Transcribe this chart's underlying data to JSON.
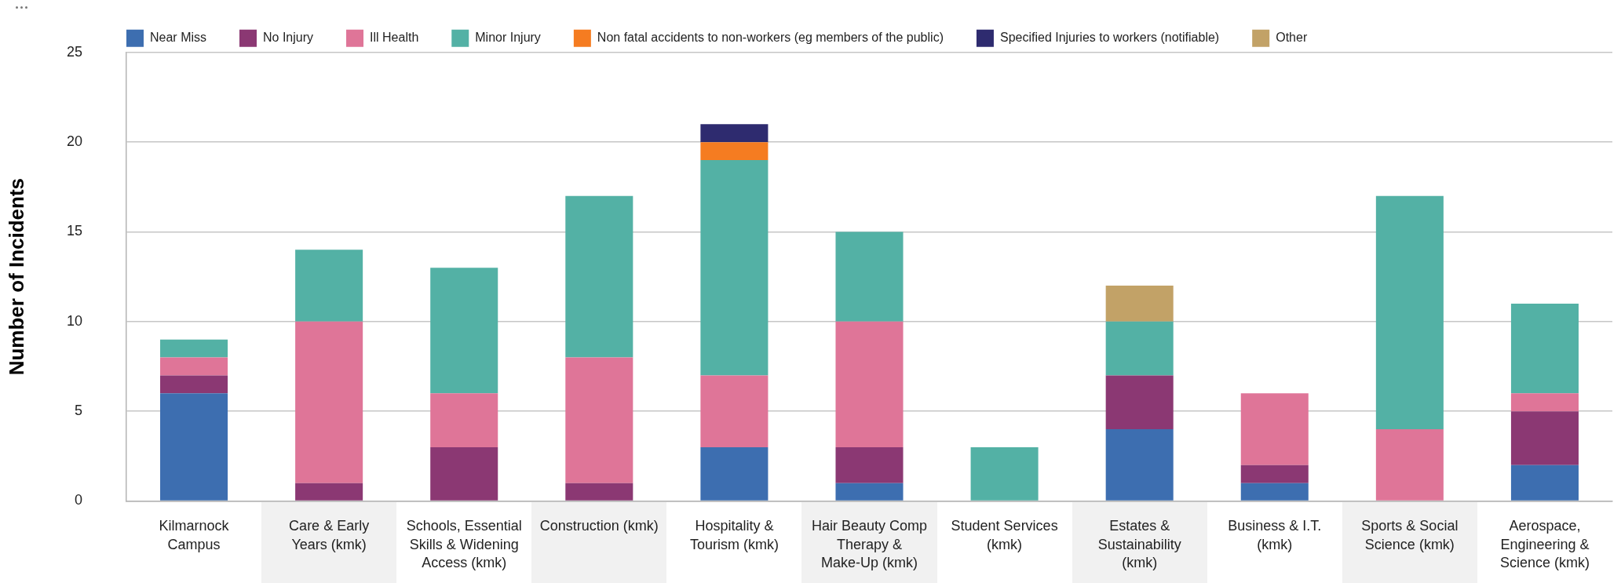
{
  "chart_data": {
    "type": "bar",
    "stacked": true,
    "ylabel": "Number of Incidents",
    "categories": [
      "Kilmarnock Campus",
      "Care & Early Years (kmk)",
      "Schools, Essential Skills & Widening Access (kmk)",
      "Construction (kmk)",
      "Hospitality & Tourism (kmk)",
      "Hair Beauty Comp Therapy & Make-Up (kmk)",
      "Student Services (kmk)",
      "Estates & Sustainability (kmk)",
      "Business & I.T. (kmk)",
      "Sports & Social Science (kmk)",
      "Aerospace, Engineering & Science (kmk)"
    ],
    "series": [
      {
        "name": "Near Miss",
        "color": "#3d6eb0",
        "values": [
          6,
          null,
          null,
          null,
          3,
          1,
          null,
          4,
          1,
          null,
          2
        ]
      },
      {
        "name": "No Injury",
        "color": "#8b3873",
        "values": [
          1,
          1,
          3,
          1,
          null,
          2,
          null,
          3,
          1,
          null,
          3
        ]
      },
      {
        "name": "Ill Health",
        "color": "#df7598",
        "values": [
          1,
          9,
          3,
          7,
          4,
          7,
          null,
          null,
          4,
          4,
          1
        ]
      },
      {
        "name": "Minor Injury",
        "color": "#53b1a5",
        "values": [
          1,
          4,
          7,
          9,
          12,
          5,
          3,
          3,
          null,
          13,
          5
        ]
      },
      {
        "name": "Non fatal accidents to non-workers (eg members of the public)",
        "color": "#f57c21",
        "values": [
          null,
          null,
          null,
          null,
          1,
          null,
          null,
          null,
          null,
          null,
          null
        ]
      },
      {
        "name": "Specified Injuries to workers (notifiable)",
        "color": "#2e2b6f",
        "values": [
          null,
          null,
          null,
          null,
          1,
          null,
          null,
          null,
          null,
          null,
          null
        ]
      },
      {
        "name": "Other",
        "color": "#c2a267",
        "values": [
          null,
          null,
          null,
          null,
          null,
          null,
          null,
          2,
          null,
          null,
          null
        ]
      }
    ],
    "ylim": [
      0,
      25
    ],
    "yticks": [
      0,
      5,
      10,
      15,
      20,
      25
    ],
    "grid": "y",
    "legend": "top left"
  }
}
